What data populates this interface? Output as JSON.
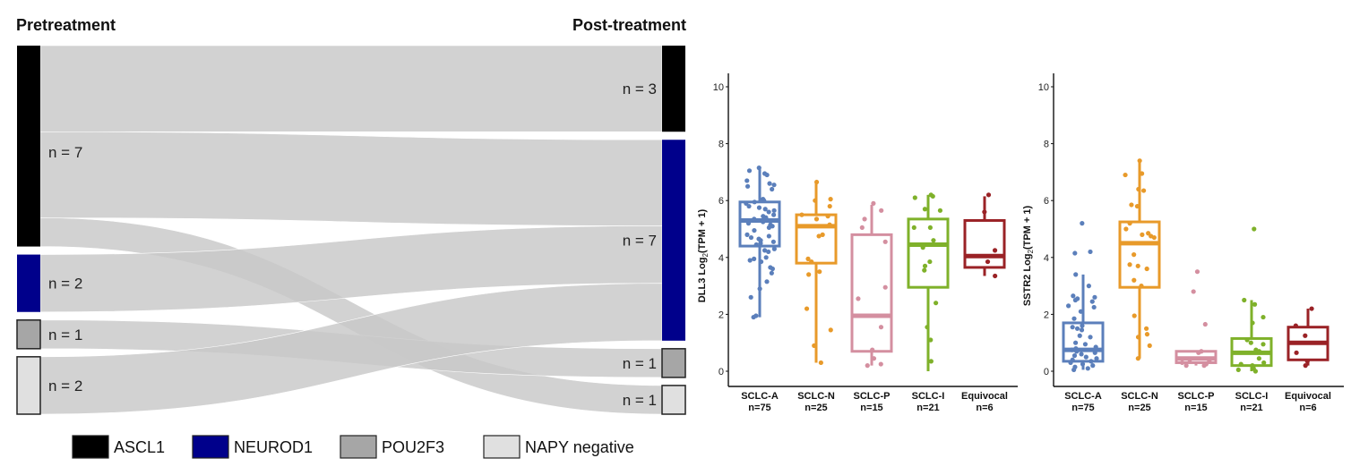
{
  "chart_data": [
    {
      "type": "sankey",
      "left_title": "Pretreatment",
      "right_title": "Post-treatment",
      "nodes_left": [
        {
          "id": "pre_ascl1",
          "category": "ASCL1",
          "n": 7,
          "label": "n = 7"
        },
        {
          "id": "pre_neurod1",
          "category": "NEUROD1",
          "n": 2,
          "label": "n = 2"
        },
        {
          "id": "pre_pou2f3",
          "category": "POU2F3",
          "n": 1,
          "label": "n = 1"
        },
        {
          "id": "pre_napy",
          "category": "NAPY negative",
          "n": 2,
          "label": "n = 2"
        }
      ],
      "nodes_right": [
        {
          "id": "post_ascl1",
          "category": "ASCL1",
          "n": 3,
          "label": "n = 3"
        },
        {
          "id": "post_neurod1",
          "category": "NEUROD1",
          "n": 7,
          "label": "n = 7"
        },
        {
          "id": "post_pou2f3",
          "category": "POU2F3",
          "n": 1,
          "label": "n = 1"
        },
        {
          "id": "post_napy",
          "category": "NAPY negative",
          "n": 1,
          "label": "n = 1"
        }
      ],
      "flows": [
        {
          "from": "ASCL1",
          "to": "ASCL1",
          "n": 3
        },
        {
          "from": "ASCL1",
          "to": "NEUROD1",
          "n": 3
        },
        {
          "from": "ASCL1",
          "to": "NAPY negative",
          "n": 1
        },
        {
          "from": "NEUROD1",
          "to": "NEUROD1",
          "n": 2
        },
        {
          "from": "POU2F3",
          "to": "POU2F3",
          "n": 1
        },
        {
          "from": "NAPY negative",
          "to": "NEUROD1",
          "n": 2
        }
      ],
      "legend": [
        {
          "label": "ASCL1",
          "color": "#000000"
        },
        {
          "label": "NEUROD1",
          "color": "#00008b"
        },
        {
          "label": "POU2F3",
          "color": "#a6a6a6"
        },
        {
          "label": "NAPY negative",
          "color": "#e0e0e0"
        }
      ],
      "legend_position": "bottom",
      "flow_color": "#c8c8c8"
    },
    {
      "type": "box",
      "title": "",
      "ylabel": "DLL3 Log2(TPM + 1)",
      "ylabel_main": "DLL3 Log",
      "ylabel_sub": "2",
      "ylabel_tail": "(TPM + 1)",
      "ylim": [
        0,
        10
      ],
      "yticks": [
        0,
        2,
        4,
        6,
        8,
        10
      ],
      "categories": [
        "SCLC-A",
        "SCLC-N",
        "SCLC-P",
        "SCLC-I",
        "Equivocal"
      ],
      "counts": [
        "n=75",
        "n=25",
        "n=15",
        "n=21",
        "n=6"
      ],
      "colors": [
        "#5b7fbb",
        "#e89a2a",
        "#d48fa0",
        "#7fb12a",
        "#9a2226"
      ],
      "boxes": [
        {
          "min": 1.9,
          "q1": 4.4,
          "median": 5.3,
          "q3": 5.95,
          "max": 7.1
        },
        {
          "min": 0.3,
          "q1": 3.8,
          "median": 5.1,
          "q3": 5.5,
          "max": 6.65
        },
        {
          "min": 0.2,
          "q1": 0.7,
          "median": 1.95,
          "q3": 4.8,
          "max": 5.85
        },
        {
          "min": 0.0,
          "q1": 2.95,
          "median": 4.45,
          "q3": 5.35,
          "max": 6.2
        },
        {
          "min": 3.35,
          "q1": 3.65,
          "median": 4.05,
          "q3": 5.3,
          "max": 6.15
        }
      ],
      "points": [
        [
          7.15,
          7.05,
          6.95,
          6.9,
          6.7,
          6.6,
          6.55,
          6.5,
          6.4,
          6.05,
          6.0,
          5.95,
          5.9,
          5.8,
          5.75,
          5.7,
          5.65,
          5.6,
          5.5,
          5.45,
          5.4,
          5.35,
          5.3,
          5.25,
          5.2,
          5.15,
          5.1,
          5.05,
          4.95,
          4.8,
          4.75,
          4.7,
          4.65,
          4.6,
          4.55,
          4.5,
          4.45,
          4.3,
          4.25,
          4.2,
          4.0,
          3.95,
          3.9,
          3.85,
          3.65,
          3.6,
          3.45,
          3.15,
          2.9,
          2.6,
          1.95,
          1.9
        ],
        [
          6.65,
          6.05,
          6.0,
          5.8,
          5.5,
          5.45,
          5.35,
          5.15,
          4.8,
          4.75,
          3.95,
          3.85,
          3.5,
          3.4,
          2.2,
          1.45,
          0.9,
          0.3
        ],
        [
          5.9,
          5.65,
          5.35,
          5.05,
          4.55,
          2.95,
          2.55,
          1.55,
          0.75,
          0.45,
          0.25,
          0.2
        ],
        [
          6.2,
          6.15,
          6.1,
          5.7,
          5.65,
          5.05,
          5.05,
          4.6,
          4.35,
          3.85,
          3.7,
          3.55,
          2.4,
          1.55,
          1.1,
          0.35
        ],
        [
          6.2,
          5.6,
          4.25,
          3.85,
          3.35
        ]
      ]
    },
    {
      "type": "box",
      "title": "",
      "ylabel": "SSTR2 Log2(TPM + 1)",
      "ylabel_main": "SSTR2 Log",
      "ylabel_sub": "2",
      "ylabel_tail": "(TPM + 1)",
      "ylim": [
        0,
        10
      ],
      "yticks": [
        0,
        2,
        4,
        6,
        8,
        10
      ],
      "categories": [
        "SCLC-A",
        "SCLC-N",
        "SCLC-P",
        "SCLC-I",
        "Equivocal"
      ],
      "counts": [
        "n=75",
        "n=25",
        "n=15",
        "n=21",
        "n=6"
      ],
      "colors": [
        "#5b7fbb",
        "#e89a2a",
        "#d48fa0",
        "#7fb12a",
        "#9a2226"
      ],
      "boxes": [
        {
          "min": 0.05,
          "q1": 0.35,
          "median": 0.75,
          "q3": 1.7,
          "max": 3.4
        },
        {
          "min": 0.45,
          "q1": 2.95,
          "median": 4.5,
          "q3": 5.25,
          "max": 7.4
        },
        {
          "min": 0.2,
          "q1": 0.3,
          "median": 0.45,
          "q3": 0.7,
          "max": 0.7
        },
        {
          "min": 0.0,
          "q1": 0.2,
          "median": 0.65,
          "q3": 1.15,
          "max": 2.5
        },
        {
          "min": 0.2,
          "q1": 0.4,
          "median": 1.0,
          "q3": 1.55,
          "max": 2.2
        }
      ],
      "points": [
        [
          5.2,
          4.2,
          4.15,
          3.4,
          3.0,
          2.65,
          2.6,
          2.55,
          2.5,
          2.45,
          2.3,
          2.25,
          2.1,
          1.85,
          1.6,
          1.55,
          1.5,
          1.45,
          1.25,
          1.2,
          1.0,
          0.95,
          0.85,
          0.8,
          0.75,
          0.7,
          0.65,
          0.6,
          0.55,
          0.5,
          0.45,
          0.4,
          0.35,
          0.3,
          0.25,
          0.2,
          0.15,
          0.1,
          0.05
        ],
        [
          7.4,
          6.95,
          6.9,
          6.4,
          6.35,
          5.85,
          5.8,
          5.2,
          5.0,
          4.85,
          4.8,
          4.75,
          4.7,
          4.1,
          3.75,
          3.7,
          3.6,
          3.2,
          3.0,
          1.95,
          1.5,
          1.3,
          1.2,
          0.9,
          0.45
        ],
        [
          3.5,
          2.8,
          1.65,
          0.7,
          0.65,
          0.4,
          0.35,
          0.3,
          0.25,
          0.2,
          0.2
        ],
        [
          5.0,
          2.5,
          2.35,
          1.9,
          1.7,
          1.1,
          1.0,
          0.95,
          0.75,
          0.7,
          0.45,
          0.3,
          0.25,
          0.2,
          0.1,
          0.05,
          0.0
        ],
        [
          2.2,
          1.6,
          1.25,
          0.65,
          0.35,
          0.2
        ]
      ]
    }
  ]
}
